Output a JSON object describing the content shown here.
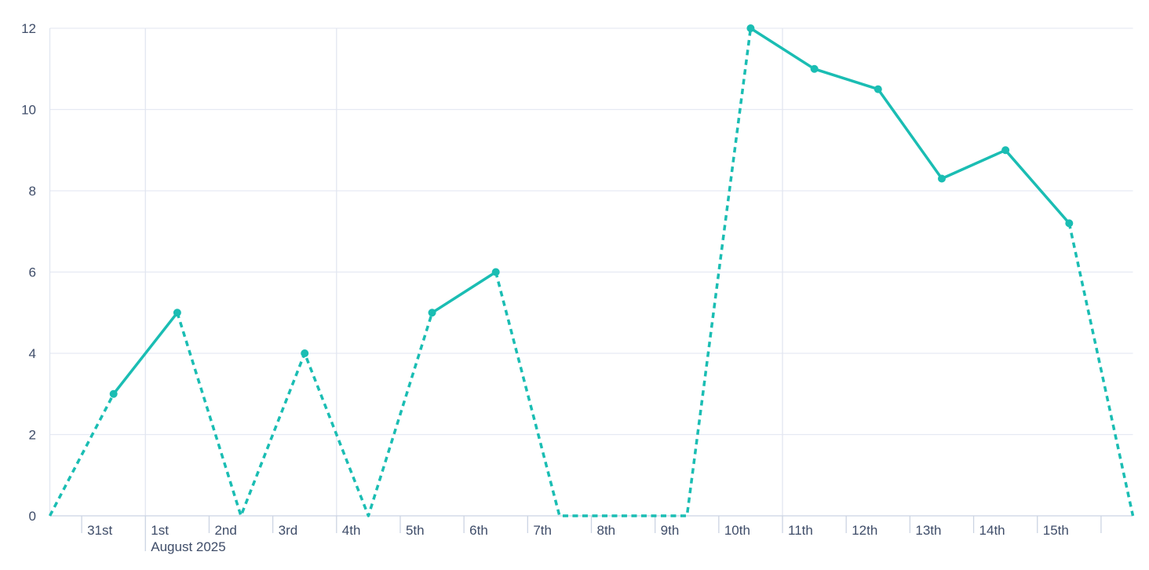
{
  "chart_data": {
    "type": "line",
    "title": "",
    "legend": false,
    "x_axis": {
      "month_label": "August 2025",
      "month_label_under": "1st",
      "tick_labels": [
        "31st",
        "1st",
        "2nd",
        "3rd",
        "4th",
        "5th",
        "6th",
        "7th",
        "8th",
        "9th",
        "10th",
        "11th",
        "12th",
        "13th",
        "14th",
        "15th"
      ],
      "vertical_gridlines_before": [
        "1st",
        "4th",
        "11th"
      ]
    },
    "y_axis": {
      "min": 0,
      "max": 12,
      "tick_interval": 2,
      "tick_labels": [
        "0",
        "2",
        "4",
        "6",
        "8",
        "10",
        "12"
      ]
    },
    "series": [
      {
        "name": "daily-values",
        "color": "#1abdb3",
        "line_style_rule": "segments adjacent to a zero-value point are dashed; segments between non-zero points are solid; markers only on non-zero points",
        "points": [
          {
            "label": null,
            "value": 0,
            "marker": false
          },
          {
            "label": "31st",
            "value": 3,
            "marker": true
          },
          {
            "label": "1st",
            "value": 5,
            "marker": true
          },
          {
            "label": "2nd",
            "value": 0,
            "marker": false
          },
          {
            "label": "3rd",
            "value": 4,
            "marker": true
          },
          {
            "label": "4th",
            "value": 0,
            "marker": false
          },
          {
            "label": "5th",
            "value": 5,
            "marker": true
          },
          {
            "label": "6th",
            "value": 6,
            "marker": true
          },
          {
            "label": "7th",
            "value": 0,
            "marker": false
          },
          {
            "label": "8th",
            "value": 0,
            "marker": false
          },
          {
            "label": "9th",
            "value": 0,
            "marker": false
          },
          {
            "label": "10th",
            "value": 12,
            "marker": true
          },
          {
            "label": "11th",
            "value": 11,
            "marker": true
          },
          {
            "label": "12th",
            "value": 10.5,
            "marker": true
          },
          {
            "label": "13th",
            "value": 8.3,
            "marker": true
          },
          {
            "label": "14th",
            "value": 9,
            "marker": true
          },
          {
            "label": "15th",
            "value": 7.2,
            "marker": true
          },
          {
            "label": null,
            "value": 0,
            "marker": false
          }
        ]
      }
    ],
    "colors": {
      "line": "#1abdb3",
      "axis_text": "#3f4d69",
      "gridline": "#e6e9f3",
      "vertical_gridline": "#e2e6f0",
      "axis_line": "#ccd4e3"
    },
    "grid": {
      "horizontal": true,
      "vertical": "month-and-week-starts"
    }
  }
}
